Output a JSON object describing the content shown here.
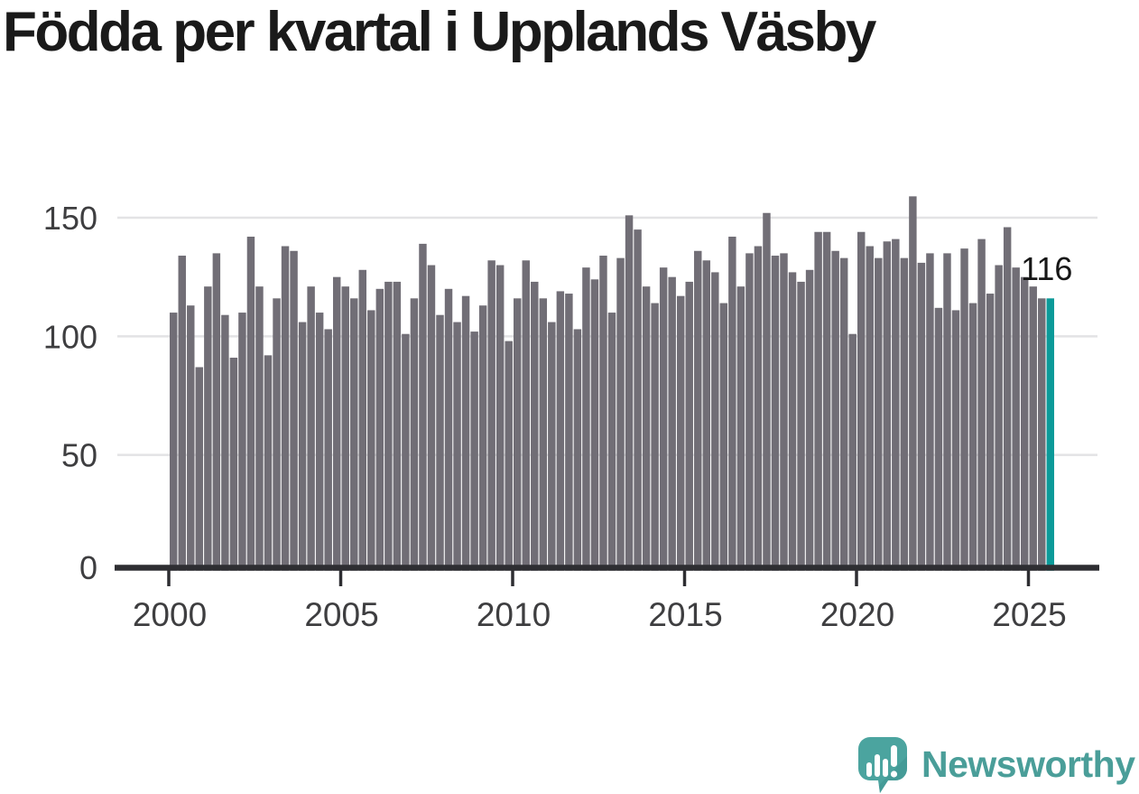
{
  "title": "Födda per kvartal i Upplands Väsby",
  "annotation": {
    "last_bar_label": "116"
  },
  "branding": {
    "name": "Newsworthy",
    "icon": "newsworthy-speech-bubble-bar-chart-icon"
  },
  "colors": {
    "background": "#ffffff",
    "title": "#1a1a1a",
    "bar": "#716e76",
    "highlight": "#0b9a99",
    "grid": "#e3e3e5",
    "axis": "#2e2e32",
    "tick_label": "#3e3e40",
    "annotation": "#161616",
    "brand_icon": "#4ba49f",
    "brand_icon_shade": "#3f948f",
    "brand_text": "#4a9e99"
  },
  "chart_data": {
    "type": "bar",
    "title": "Födda per kvartal i Upplands Väsby",
    "unit": "births per quarter (födda per kvartal)",
    "x_start": "2000Q1",
    "x_end": "2025Q3",
    "x_tick_labels": [
      "2000",
      "2005",
      "2010",
      "2015",
      "2020",
      "2025"
    ],
    "y_tick_labels": [
      "0",
      "50",
      "100",
      "150"
    ],
    "ylim": [
      0,
      165
    ],
    "grid": "horizontal",
    "legend": "none",
    "highlight_last": true,
    "last_value_label": "116",
    "series": [
      {
        "name": "Födda",
        "values": [
          110,
          134,
          113,
          87,
          121,
          135,
          109,
          91,
          110,
          142,
          121,
          92,
          116,
          138,
          136,
          106,
          121,
          110,
          103,
          125,
          121,
          116,
          128,
          111,
          120,
          123,
          123,
          101,
          116,
          139,
          130,
          109,
          120,
          106,
          117,
          102,
          113,
          132,
          130,
          98,
          116,
          132,
          123,
          116,
          106,
          119,
          118,
          103,
          129,
          124,
          134,
          110,
          133,
          151,
          145,
          121,
          114,
          129,
          125,
          117,
          123,
          136,
          132,
          127,
          114,
          142,
          121,
          135,
          138,
          152,
          134,
          135,
          127,
          123,
          128,
          144,
          144,
          136,
          133,
          101,
          144,
          138,
          133,
          140,
          141,
          133,
          159,
          131,
          135,
          112,
          135,
          111,
          137,
          114,
          141,
          118,
          130,
          146,
          129,
          125,
          121,
          116,
          116
        ]
      }
    ]
  }
}
